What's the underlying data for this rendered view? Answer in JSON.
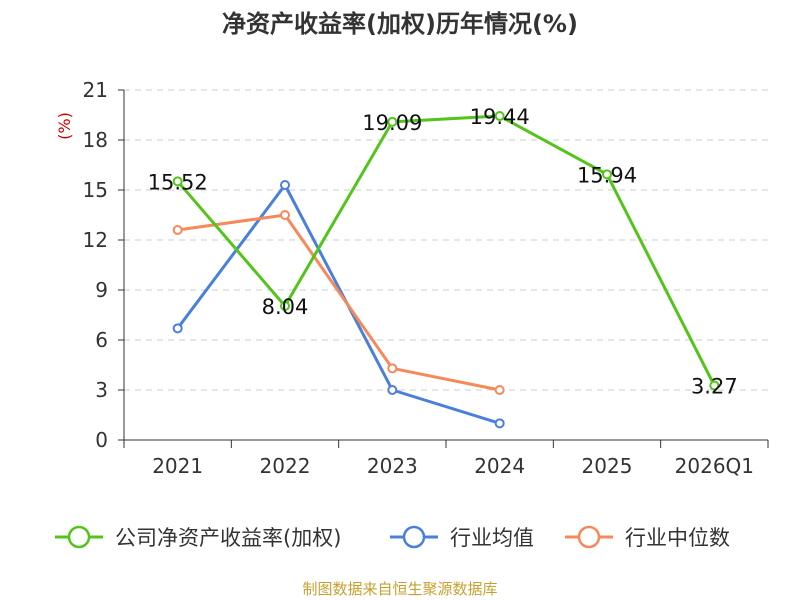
{
  "chart_data": {
    "type": "line",
    "title": "净资产收益率(加权)历年情况(%)",
    "ylabel": "(%)",
    "xlabel": "",
    "categories": [
      "2021",
      "2022",
      "2023",
      "2024",
      "2025",
      "2026Q1"
    ],
    "ylim": [
      0,
      21
    ],
    "yticks": [
      0,
      3,
      6,
      9,
      12,
      15,
      18,
      21
    ],
    "grid": true,
    "legend_position": "bottom",
    "series": [
      {
        "name": "公司净资产收益率(加权)",
        "color": "#52c41a",
        "values": [
          15.52,
          8.04,
          19.09,
          19.44,
          15.94,
          3.27
        ],
        "labels": [
          "15.52",
          "8.04",
          "19.09",
          "19.44",
          "15.94",
          "3.27"
        ]
      },
      {
        "name": "行业均值",
        "color": "#4a7fdc",
        "values": [
          6.7,
          15.3,
          3.0,
          1.0,
          null,
          null
        ]
      },
      {
        "name": "行业中位数",
        "color": "#f5895a",
        "values": [
          12.6,
          13.5,
          4.3,
          3.0,
          null,
          null
        ]
      }
    ],
    "source": "制图数据来自恒生聚源数据库"
  }
}
